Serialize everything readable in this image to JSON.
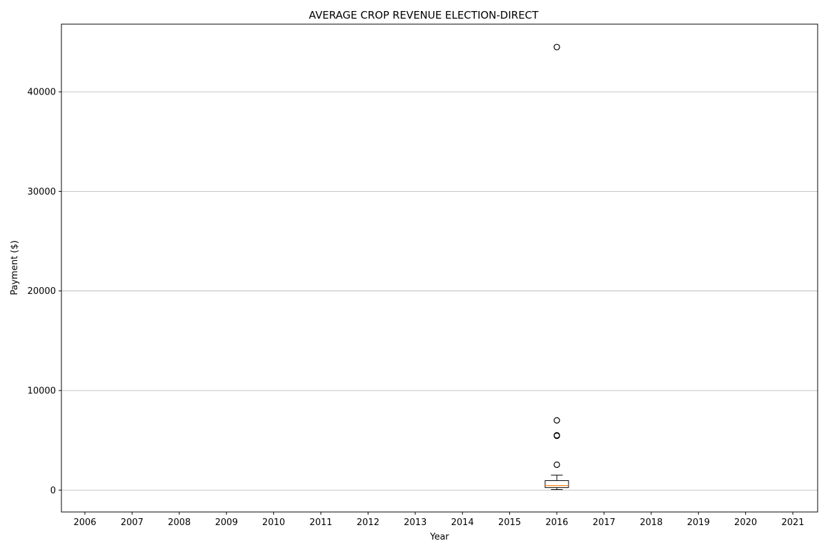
{
  "chart_data": {
    "type": "boxplot",
    "title": "AVERAGE CROP REVENUE ELECTION-DIRECT",
    "xlabel": "Year",
    "ylabel": "Payment ($)",
    "categories": [
      "2006",
      "2007",
      "2008",
      "2009",
      "2010",
      "2011",
      "2012",
      "2013",
      "2014",
      "2015",
      "2016",
      "2017",
      "2018",
      "2019",
      "2020",
      "2021"
    ],
    "ylim": [
      -2200,
      46800
    ],
    "yticks": [
      0,
      10000,
      20000,
      30000,
      40000
    ],
    "grid": "horizontal",
    "boxes": [
      {
        "category": "2016",
        "whisker_low": 50,
        "q1": 250,
        "median": 450,
        "q3": 950,
        "whisker_high": 1500,
        "outliers": [
          2550,
          5450,
          5500,
          7000,
          44500
        ]
      }
    ],
    "colors": {
      "median": "#ff7f0e",
      "box": "#000000",
      "grid": "#b0b0b0"
    }
  }
}
